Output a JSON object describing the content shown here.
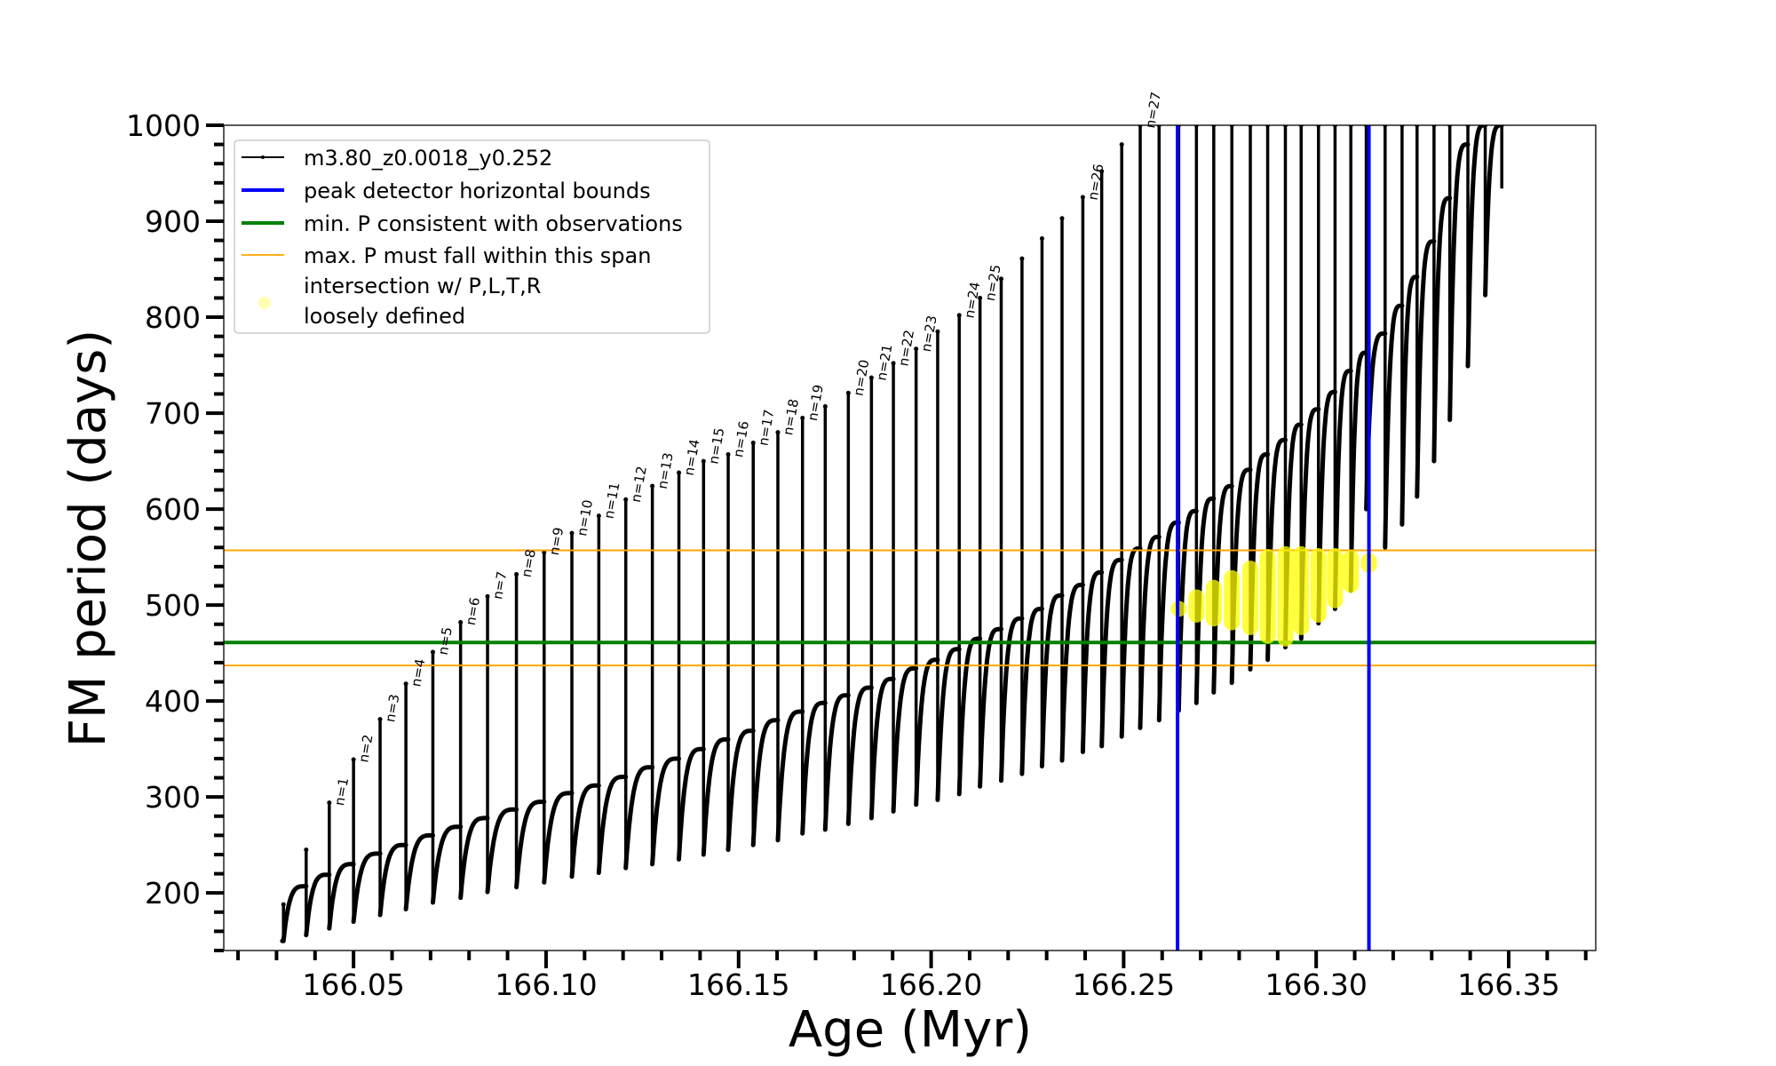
{
  "chart_data": {
    "type": "line",
    "xlabel": "Age (Myr)",
    "ylabel": "FM period (days)",
    "xlim": [
      166.0163,
      166.3726
    ],
    "ylim": [
      140,
      1000
    ],
    "x_ticks": [
      "166.05",
      "166.10",
      "166.15",
      "166.20",
      "166.25",
      "166.30",
      "166.35"
    ],
    "y_ticks": [
      "200",
      "300",
      "400",
      "500",
      "600",
      "700",
      "800",
      "900",
      "1000"
    ],
    "grid": false,
    "legend_placement": "upper-left",
    "legend": [
      {
        "label": "m3.80_z0.0018_y0.252",
        "color": "#000000",
        "style": "line-dot"
      },
      {
        "label": "peak detector horizontal bounds",
        "color": "#0000ff",
        "style": "thick-line"
      },
      {
        "label": "min. P consistent with observations",
        "color": "#008000",
        "style": "thick-line"
      },
      {
        "label": "max. P must fall within this span",
        "color": "#ffa500",
        "style": "thin-line"
      },
      {
        "label": "intersection w/ P,L,T,R",
        "label2": "loosely defined",
        "color": "#ffff00",
        "style": "marker"
      }
    ],
    "series": [
      {
        "name": "m3.80_z0.0018_y0.252",
        "color": "#000000",
        "start": [
          166.0315,
          150
        ],
        "pulse_columns": [
          "age",
          "peak_period",
          "dip_period",
          "pre_pulse_period",
          "label"
        ],
        "pulses": [
          [
            166.0318,
            188,
            150,
            150,
            ""
          ],
          [
            166.0377,
            245,
            156,
            207,
            ""
          ],
          [
            166.0437,
            294,
            163,
            219,
            "n=1"
          ],
          [
            166.05,
            339,
            170,
            230,
            "n=2"
          ],
          [
            166.0569,
            381,
            177,
            241,
            "n=3"
          ],
          [
            166.0636,
            418,
            183,
            250,
            "n=4"
          ],
          [
            166.0706,
            451,
            190,
            260,
            "n=5"
          ],
          [
            166.0778,
            482,
            195,
            269,
            "n=6"
          ],
          [
            166.0848,
            509,
            201,
            278,
            "n=7"
          ],
          [
            166.0923,
            532,
            206,
            287,
            "n=8"
          ],
          [
            166.0995,
            555,
            211,
            295,
            "n=9"
          ],
          [
            166.1067,
            575,
            217,
            304,
            "n=10"
          ],
          [
            166.1137,
            593,
            221,
            312,
            "n=11"
          ],
          [
            166.1207,
            610,
            226,
            321,
            "n=12"
          ],
          [
            166.1276,
            624,
            230,
            331,
            "n=13"
          ],
          [
            166.1345,
            638,
            235,
            340,
            "n=14"
          ],
          [
            166.1409,
            650,
            240,
            350,
            "n=15"
          ],
          [
            166.1473,
            657,
            245,
            360,
            "n=16"
          ],
          [
            166.1538,
            669,
            250,
            369,
            "n=17"
          ],
          [
            166.1602,
            680,
            255,
            380,
            "n=18"
          ],
          [
            166.1666,
            695,
            262,
            389,
            "n=19"
          ],
          [
            166.1725,
            707,
            266,
            398,
            ""
          ],
          [
            166.1785,
            721,
            272,
            406,
            "n=20"
          ],
          [
            166.1845,
            737,
            278,
            414,
            "n=21"
          ],
          [
            166.1902,
            752,
            285,
            423,
            "n=22"
          ],
          [
            166.1961,
            767,
            292,
            434,
            "n=23"
          ],
          [
            166.2017,
            785,
            297,
            443,
            ""
          ],
          [
            166.2073,
            802,
            303,
            454,
            "n=24"
          ],
          [
            166.2127,
            820,
            311,
            465,
            "n=25"
          ],
          [
            166.2182,
            840,
            317,
            475,
            ""
          ],
          [
            166.2236,
            861,
            324,
            486,
            ""
          ],
          [
            166.2288,
            882,
            332,
            496,
            ""
          ],
          [
            166.234,
            903,
            338,
            510,
            ""
          ],
          [
            166.2394,
            925,
            347,
            521,
            "n=26"
          ],
          [
            166.2443,
            952,
            353,
            534,
            ""
          ],
          [
            166.2495,
            980,
            363,
            547,
            ""
          ],
          [
            166.2543,
            1000,
            372,
            559,
            "n=27"
          ],
          [
            166.2592,
            1000,
            380,
            571,
            ""
          ],
          [
            166.2643,
            1000,
            390,
            586,
            ""
          ],
          [
            166.2689,
            1000,
            398,
            598,
            ""
          ],
          [
            166.2734,
            1000,
            409,
            611,
            ""
          ],
          [
            166.2781,
            1000,
            419,
            624,
            ""
          ],
          [
            166.2829,
            1000,
            433,
            641,
            ""
          ],
          [
            166.2874,
            1000,
            443,
            657,
            ""
          ],
          [
            166.292,
            1000,
            456,
            672,
            ""
          ],
          [
            166.2961,
            1000,
            465,
            688,
            ""
          ],
          [
            166.3006,
            1000,
            481,
            704,
            ""
          ],
          [
            166.3049,
            1000,
            496,
            722,
            ""
          ],
          [
            166.309,
            1000,
            515,
            744,
            ""
          ],
          [
            166.313,
            1000,
            600,
            763,
            ""
          ],
          [
            166.3179,
            1000,
            560,
            783,
            ""
          ],
          [
            166.3223,
            1000,
            584,
            812,
            ""
          ],
          [
            166.3262,
            1000,
            613,
            842,
            ""
          ],
          [
            166.3306,
            1000,
            650,
            879,
            ""
          ],
          [
            166.3347,
            1000,
            693,
            924,
            ""
          ],
          [
            166.3394,
            1000,
            749,
            980,
            ""
          ],
          [
            166.3439,
            1000,
            823,
            1000,
            ""
          ],
          [
            166.3482,
            1000,
            934,
            1000,
            ""
          ]
        ]
      },
      {
        "name": "intersection w/ P,L,T,R loosely defined",
        "color": "#ffff00",
        "columns": [
          "age",
          "min_period",
          "max_period"
        ],
        "points": [
          [
            166.2643,
            496,
            496
          ],
          [
            166.2689,
            490,
            508
          ],
          [
            166.2734,
            486,
            518
          ],
          [
            166.2781,
            482,
            528
          ],
          [
            166.2829,
            477,
            538
          ],
          [
            166.2874,
            468,
            550
          ],
          [
            166.292,
            465,
            553
          ],
          [
            166.2961,
            477,
            553
          ],
          [
            166.3006,
            490,
            551
          ],
          [
            166.3049,
            505,
            551
          ],
          [
            166.309,
            521,
            549
          ],
          [
            166.3137,
            542,
            546
          ]
        ]
      }
    ],
    "hlines": [
      {
        "name": "max. P must fall within this span",
        "y": 557,
        "color": "#ffa500"
      },
      {
        "name": "min. P consistent with observations",
        "y": 461,
        "color": "#008000"
      },
      {
        "name": "max. P must fall within this span",
        "y": 437,
        "color": "#ffa500"
      }
    ],
    "vlines": [
      {
        "name": "peak detector horizontal bounds",
        "x": 166.264,
        "color": "#0000ff"
      },
      {
        "name": "peak detector horizontal bounds",
        "x": 166.3137,
        "color": "#0000ff"
      }
    ]
  }
}
